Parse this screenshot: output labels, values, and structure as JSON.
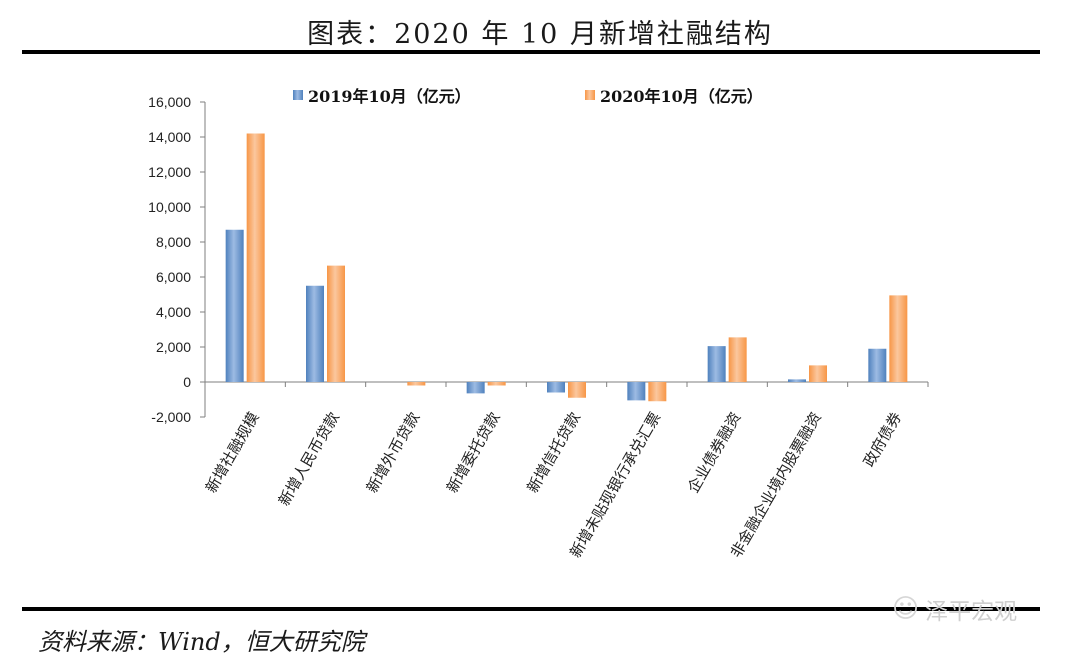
{
  "title": "图表：2020 年 10 月新增社融结构",
  "source": "资料来源：Wind，恒大研究院",
  "watermark": "泽平宏观",
  "chart_data": {
    "type": "bar",
    "categories": [
      "新增社融规模",
      "新增人民币贷款",
      "新增外币贷款",
      "新增委托贷款",
      "新增信托贷款",
      "新增未贴现银行承兑汇票",
      "企业债券融资",
      "非金融企业境内股票融资",
      "政府债券"
    ],
    "series": [
      {
        "name": "2019年10月（亿元）",
        "color": "#4f81bd",
        "values": [
          8700,
          5500,
          0,
          -650,
          -600,
          -1050,
          2050,
          150,
          1900
        ]
      },
      {
        "name": "2020年10月（亿元）",
        "color": "#f79646",
        "values": [
          14200,
          6650,
          -200,
          -200,
          -900,
          -1100,
          2550,
          950,
          4950
        ]
      }
    ],
    "ylim": [
      -2000,
      16000
    ],
    "yticks": [
      "-2,000",
      "0",
      "2,000",
      "4,000",
      "6,000",
      "8,000",
      "10,000",
      "12,000",
      "14,000",
      "16,000"
    ],
    "xlabel": "",
    "ylabel": "",
    "legend": "top",
    "grid": false
  }
}
